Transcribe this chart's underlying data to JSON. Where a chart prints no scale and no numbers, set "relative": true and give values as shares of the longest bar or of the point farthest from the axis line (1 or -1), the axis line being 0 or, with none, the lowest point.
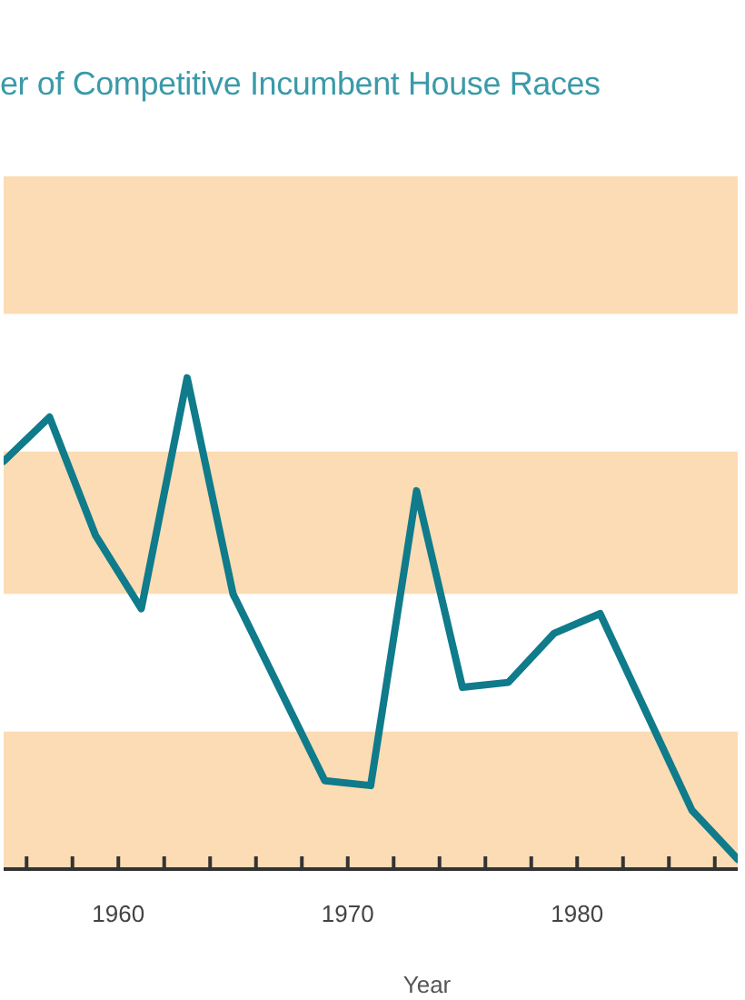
{
  "chart_data": {
    "type": "line",
    "title": "er of Competitive Incumbent House Races",
    "xlabel": "Year",
    "x": [
      1955,
      1957,
      1959,
      1961,
      1963,
      1965,
      1967,
      1969,
      1971,
      1973,
      1975,
      1977,
      1979,
      1981,
      1983,
      1985,
      1987
    ],
    "values": [
      0.83,
      0.92,
      0.68,
      0.53,
      1.0,
      0.56,
      0.37,
      0.18,
      0.17,
      0.77,
      0.37,
      0.38,
      0.48,
      0.52,
      0.32,
      0.12,
      0.02
    ],
    "color": "#0f7b8b",
    "relative": true,
    "xlim": [
      1955,
      1987
    ],
    "xticks": [
      {
        "value": 1956,
        "label": null
      },
      {
        "value": 1958,
        "label": null
      },
      1960,
      {
        "value": 1962,
        "label": null
      },
      {
        "value": 1964,
        "label": null
      },
      {
        "value": 1966,
        "label": null
      },
      {
        "value": 1968,
        "label": null
      },
      1970,
      {
        "value": 1972,
        "label": null
      },
      {
        "value": 1974,
        "label": null
      },
      {
        "value": 1976,
        "label": null
      },
      {
        "value": 1978,
        "label": null
      },
      1980,
      {
        "value": 1982,
        "label": null
      },
      {
        "value": 1984,
        "label": null
      },
      {
        "value": 1986,
        "label": null
      }
    ],
    "bands": [
      {
        "axis": "y",
        "from": 0,
        "to": 0.28,
        "color": "#fcdcb4"
      },
      {
        "axis": "y",
        "from": 0.56,
        "to": 0.85,
        "color": "#fcdcb4"
      },
      {
        "axis": "y",
        "from": 1.13,
        "to": 1.41,
        "color": "#fcdcb4"
      }
    ]
  }
}
